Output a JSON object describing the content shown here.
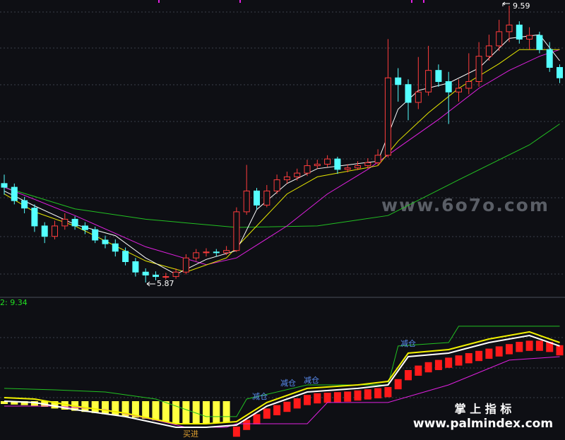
{
  "chart_data": {
    "type": "candlestick",
    "candles": {
      "open": [
        7.2,
        7.15,
        6.97,
        6.87,
        6.63,
        6.49,
        6.63,
        6.72,
        6.63,
        6.58,
        6.44,
        6.39,
        6.29,
        6.15,
        6.01,
        5.97,
        5.95,
        5.95,
        6.01,
        6.2,
        6.27,
        6.28,
        6.27,
        6.3,
        6.82,
        7.1,
        6.91,
        7.1,
        7.25,
        7.29,
        7.34,
        7.44,
        7.46,
        7.53,
        7.39,
        7.41,
        7.44,
        7.48,
        7.58,
        8.62,
        8.53,
        8.29,
        8.43,
        8.72,
        8.57,
        8.43,
        8.48,
        8.57,
        8.91,
        9.05,
        9.24,
        9.33,
        9.14,
        9.19,
        9.0,
        8.76
      ],
      "high": [
        7.32,
        7.2,
        7.02,
        6.92,
        6.68,
        6.7,
        6.8,
        6.76,
        6.68,
        6.62,
        6.5,
        6.45,
        6.34,
        6.2,
        6.06,
        6.02,
        6.0,
        6.06,
        6.25,
        6.32,
        6.33,
        6.32,
        6.36,
        6.88,
        7.45,
        7.14,
        7.18,
        7.32,
        7.36,
        7.4,
        7.52,
        7.52,
        7.58,
        7.56,
        7.46,
        7.5,
        7.54,
        7.66,
        9.14,
        8.75,
        8.6,
        8.9,
        9.05,
        8.8,
        8.7,
        8.6,
        8.95,
        9.1,
        9.2,
        9.4,
        9.59,
        9.38,
        9.3,
        9.24,
        9.1,
        8.8
      ],
      "low": [
        7.05,
        6.92,
        6.8,
        6.55,
        6.4,
        6.45,
        6.58,
        6.58,
        6.52,
        6.4,
        6.33,
        6.22,
        6.1,
        5.95,
        5.87,
        5.9,
        5.91,
        5.92,
        5.98,
        6.16,
        6.22,
        6.22,
        6.24,
        6.28,
        6.78,
        6.85,
        6.88,
        7.06,
        7.2,
        7.24,
        7.3,
        7.4,
        7.42,
        7.33,
        7.35,
        7.38,
        7.4,
        7.44,
        7.55,
        8.3,
        8.05,
        8.2,
        8.38,
        8.5,
        8.0,
        8.3,
        8.4,
        8.5,
        8.85,
        8.98,
        9.1,
        9.08,
        9.0,
        8.95,
        8.7,
        8.55
      ],
      "close": [
        7.15,
        6.97,
        6.87,
        6.63,
        6.49,
        6.63,
        6.72,
        6.63,
        6.58,
        6.44,
        6.39,
        6.29,
        6.15,
        6.01,
        5.97,
        5.95,
        5.95,
        6.01,
        6.2,
        6.27,
        6.28,
        6.27,
        6.3,
        6.82,
        7.1,
        6.91,
        7.1,
        7.25,
        7.29,
        7.34,
        7.44,
        7.46,
        7.53,
        7.39,
        7.41,
        7.44,
        7.48,
        7.58,
        8.62,
        8.53,
        8.29,
        8.43,
        8.72,
        8.57,
        8.43,
        8.48,
        8.57,
        8.91,
        9.05,
        9.24,
        9.33,
        9.14,
        9.19,
        9.0,
        8.76,
        8.62
      ]
    },
    "up_color": "#ff3c3c",
    "down_color": "#54ffff",
    "high_label": 9.59,
    "low_label": 5.87,
    "ma": [
      {
        "color": "#22c022",
        "x": [
          0,
          7,
          14,
          23,
          31,
          38,
          45,
          52,
          55
        ],
        "values": [
          7.15,
          6.86,
          6.72,
          6.61,
          6.63,
          6.77,
          7.25,
          7.72,
          8.0
        ]
      },
      {
        "color": "#e020e0",
        "x": [
          0,
          7,
          14,
          20,
          23,
          28,
          32,
          36,
          39,
          43,
          47,
          50,
          53,
          55
        ],
        "values": [
          7.15,
          6.77,
          6.35,
          6.11,
          6.2,
          6.63,
          7.06,
          7.39,
          7.68,
          8.06,
          8.48,
          8.72,
          8.91,
          9.0
        ]
      },
      {
        "color": "#e8e800",
        "x": [
          0,
          3,
          7,
          14,
          18,
          22,
          25,
          28,
          31,
          37,
          39,
          42,
          45,
          49,
          51,
          55
        ],
        "values": [
          7.06,
          6.82,
          6.63,
          6.16,
          6.01,
          6.2,
          6.63,
          7.06,
          7.29,
          7.44,
          7.77,
          8.15,
          8.48,
          8.81,
          9.0,
          9.0
        ]
      },
      {
        "color": "#ffffff",
        "x": [
          0,
          3,
          7,
          11,
          14,
          17,
          20,
          23,
          25,
          28,
          31,
          34,
          37,
          39,
          41,
          44,
          47,
          50,
          53,
          55
        ],
        "values": [
          7.1,
          6.9,
          6.65,
          6.5,
          6.2,
          5.98,
          6.18,
          6.3,
          6.85,
          7.2,
          7.4,
          7.45,
          7.5,
          8.2,
          8.45,
          8.55,
          8.75,
          9.15,
          9.2,
          8.85
        ]
      }
    ],
    "watermark": "www.6o7o.com"
  },
  "indicator": {
    "label": "2: 9.34",
    "lines": [
      {
        "color": "#22c022",
        "x": [
          0,
          5,
          10,
          15,
          20,
          23,
          24,
          30,
          38,
          39,
          44,
          45,
          50,
          55
        ],
        "values": [
          4.38,
          4.25,
          4.06,
          3.44,
          1.88,
          1.88,
          3.44,
          4.69,
          4.69,
          8.13,
          8.44,
          9.88,
          9.88,
          9.88
        ]
      },
      {
        "color": "#e020e0",
        "x": [
          0,
          5,
          10,
          15,
          18,
          22,
          23,
          30,
          32,
          38,
          44,
          50,
          55
        ],
        "values": [
          2.81,
          2.81,
          2.5,
          1.56,
          0.94,
          0.94,
          1.25,
          1.25,
          3.13,
          3.13,
          4.69,
          6.88,
          7.19
        ]
      },
      {
        "color": "#f0f000",
        "x": [
          0,
          3,
          7,
          12,
          17,
          20,
          23,
          26,
          30,
          35,
          38,
          40,
          44,
          48,
          52,
          55
        ],
        "values": [
          3.56,
          3.44,
          2.81,
          2.19,
          1.25,
          1.25,
          1.44,
          3.13,
          4.38,
          4.69,
          5.0,
          7.5,
          7.81,
          8.75,
          9.38,
          8.44
        ]
      },
      {
        "color": "#ffffff",
        "x": [
          0,
          3,
          7,
          12,
          17,
          20,
          23,
          26,
          30,
          35,
          38,
          40,
          44,
          48,
          52,
          55
        ],
        "values": [
          3.25,
          3.13,
          2.5,
          1.88,
          0.94,
          0.94,
          1.13,
          2.81,
          4.06,
          4.38,
          4.69,
          7.19,
          7.5,
          8.44,
          9.06,
          8.13
        ]
      }
    ],
    "yellow_bars": {
      "color": "#ffff40",
      "start": 0,
      "base": 3.25,
      "values": [
        3.0,
        2.95,
        2.9,
        2.85,
        2.75,
        2.6,
        2.5,
        2.4,
        2.3,
        2.2,
        2.1,
        2.0,
        1.9,
        1.8,
        1.7,
        1.55,
        1.4,
        1.3,
        1.25,
        1.25,
        1.25,
        1.3,
        1.35
      ]
    },
    "red_bars": {
      "color": "#ff1a1a",
      "start": 23,
      "depth": 0.9,
      "values": [
        1.0,
        1.6,
        2.1,
        2.6,
        2.9,
        3.2,
        3.5,
        3.8,
        3.95,
        4.0,
        4.05,
        4.1,
        4.2,
        4.3,
        4.4,
        4.5,
        5.2,
        6.0,
        6.4,
        6.7,
        6.9,
        7.1,
        7.3,
        7.5,
        7.7,
        7.9,
        8.1,
        8.3,
        8.5,
        8.6,
        8.6,
        8.5,
        8.2
      ]
    },
    "signals": [
      "减仓",
      "减仓",
      "减仓",
      "减仓",
      "买进"
    ]
  },
  "footer": {
    "title": "掌 上 指 标",
    "url": "www.palmindex.com"
  }
}
